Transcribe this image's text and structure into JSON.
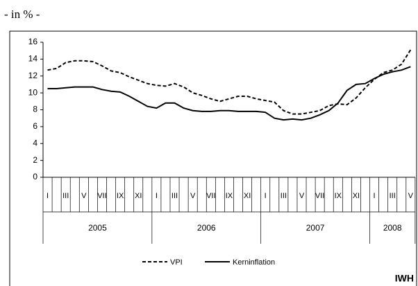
{
  "chart_data": {
    "type": "line",
    "subtitle": "- in % -",
    "categories": [
      "I",
      null,
      "III",
      null,
      "V",
      null,
      "VII",
      null,
      "IX",
      null,
      "XI",
      null,
      "I",
      null,
      "III",
      null,
      "V",
      null,
      "VII",
      null,
      "IX",
      null,
      "XI",
      null,
      "I",
      null,
      "III",
      null,
      "V",
      null,
      "VII",
      null,
      "IX",
      null,
      "XI",
      null,
      "I",
      null,
      "III",
      null,
      "V"
    ],
    "years": [
      "2005",
      "2006",
      "2007",
      "2008"
    ],
    "series": [
      {
        "name": "VPI",
        "color": "#000000",
        "dash": true,
        "values": [
          12.7,
          12.9,
          13.6,
          13.8,
          13.8,
          13.7,
          13.2,
          12.6,
          12.4,
          11.9,
          11.5,
          11.1,
          10.9,
          10.8,
          11.1,
          10.7,
          10.0,
          9.7,
          9.3,
          9.0,
          9.3,
          9.6,
          9.6,
          9.3,
          9.1,
          8.9,
          7.9,
          7.5,
          7.5,
          7.7,
          7.9,
          8.5,
          8.7,
          8.6,
          9.4,
          10.6,
          11.6,
          12.4,
          12.7,
          13.4,
          15.1
        ]
      },
      {
        "name": "Kerninflation",
        "color": "#000000",
        "dash": false,
        "values": [
          10.5,
          10.5,
          10.6,
          10.7,
          10.7,
          10.7,
          10.4,
          10.2,
          10.1,
          9.6,
          9.0,
          8.4,
          8.2,
          8.8,
          8.8,
          8.2,
          7.9,
          7.8,
          7.8,
          7.9,
          7.9,
          7.8,
          7.8,
          7.8,
          7.7,
          7.0,
          6.8,
          6.9,
          6.8,
          7.0,
          7.4,
          7.9,
          8.8,
          10.3,
          11.0,
          11.1,
          11.7,
          12.2,
          12.5,
          12.7,
          13.1
        ]
      }
    ],
    "ylim": [
      0,
      16
    ],
    "yticks": [
      0,
      2,
      4,
      6,
      8,
      10,
      12,
      14,
      16
    ],
    "source": "IWH"
  }
}
